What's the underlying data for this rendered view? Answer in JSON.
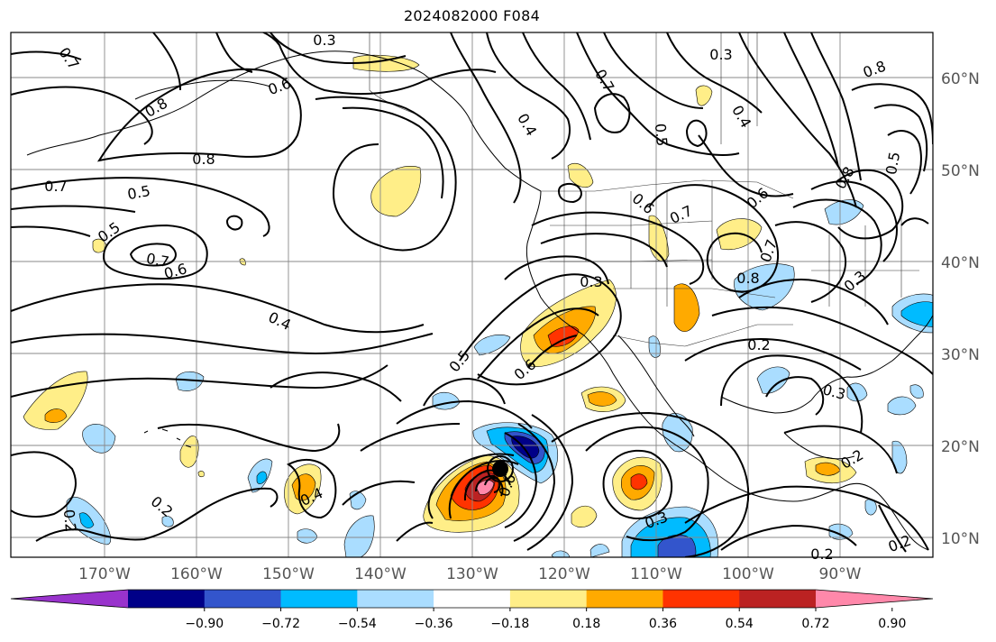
{
  "title": "2024082000 F084",
  "latitude_labels": [
    "60°N",
    "50°N",
    "40°N",
    "30°N",
    "20°N",
    "10°N"
  ],
  "longitude_labels": [
    "170°W",
    "160°W",
    "150°W",
    "140°W",
    "130°W",
    "120°W",
    "110°W",
    "100°W",
    "90°W"
  ],
  "contour_labels": [
    {
      "id": "c1",
      "text": "0.7"
    },
    {
      "id": "c2",
      "text": "0.8"
    },
    {
      "id": "c3",
      "text": "0.6"
    },
    {
      "id": "c4",
      "text": "0.3"
    },
    {
      "id": "c5",
      "text": "0.8"
    },
    {
      "id": "c6",
      "text": "0.7"
    },
    {
      "id": "c7",
      "text": "0.5"
    },
    {
      "id": "c8",
      "text": "0.5"
    },
    {
      "id": "c9",
      "text": "0.7"
    },
    {
      "id": "c10",
      "text": "0.6"
    },
    {
      "id": "c11",
      "text": "0.4"
    },
    {
      "id": "c12",
      "text": "0.4"
    },
    {
      "id": "c13",
      "text": "0.7"
    },
    {
      "id": "c14",
      "text": "0.3"
    },
    {
      "id": "c15",
      "text": "0.5"
    },
    {
      "id": "c16",
      "text": "0.4"
    },
    {
      "id": "c17",
      "text": "0.8"
    },
    {
      "id": "c18",
      "text": "0.5"
    },
    {
      "id": "c19",
      "text": "0.6"
    },
    {
      "id": "c20",
      "text": "0.7"
    },
    {
      "id": "c21",
      "text": "0.6"
    },
    {
      "id": "c22",
      "text": "0.8"
    },
    {
      "id": "c23",
      "text": "0.8"
    },
    {
      "id": "c24",
      "text": "0.7"
    },
    {
      "id": "c25",
      "text": "0.3"
    },
    {
      "id": "c26",
      "text": "0.3"
    },
    {
      "id": "c27",
      "text": "0.5"
    },
    {
      "id": "c28",
      "text": "0.6"
    },
    {
      "id": "c29",
      "text": "0.2"
    },
    {
      "id": "c30",
      "text": "0.3"
    },
    {
      "id": "c31",
      "text": "0.2"
    },
    {
      "id": "c32",
      "text": "0.2"
    },
    {
      "id": "c33",
      "text": "0.4"
    },
    {
      "id": "c34",
      "text": "0.2"
    },
    {
      "id": "c35",
      "text": "0.6"
    },
    {
      "id": "c36",
      "text": "0.3"
    },
    {
      "id": "c37",
      "text": "0.2"
    },
    {
      "id": "c38",
      "text": "0.2"
    }
  ],
  "colorbar": {
    "colors": [
      "#9933CC",
      "#000088",
      "#3355CC",
      "#00BBFF",
      "#AADDFF",
      "#FFFFFF",
      "#FFEE88",
      "#FFAA00",
      "#FF3300",
      "#BB2222",
      "#FF88AA"
    ],
    "tick_labels": [
      "−0.90",
      "−0.72",
      "−0.54",
      "−0.36",
      "−0.18",
      "0.18",
      "0.36",
      "0.54",
      "0.72",
      "0.90"
    ]
  }
}
